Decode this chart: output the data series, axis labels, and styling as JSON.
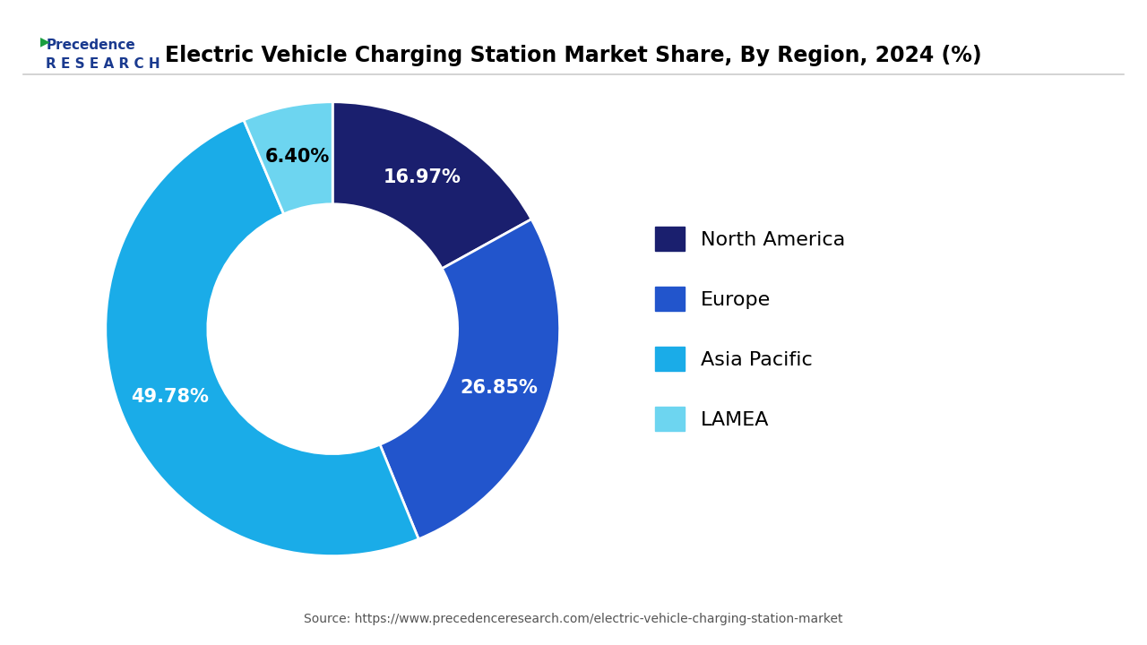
{
  "title": "Electric Vehicle Charging Station Market Share, By Region, 2024 (%)",
  "values": [
    16.97,
    26.85,
    49.78,
    6.4
  ],
  "labels": [
    "North America",
    "Europe",
    "Asia Pacific",
    "LAMEA"
  ],
  "pct_labels": [
    "16.97%",
    "26.85%",
    "49.78%",
    "6.40%"
  ],
  "colors": [
    "#1a1f6e",
    "#2255cc",
    "#1aace8",
    "#6dd5f0"
  ],
  "source": "Source: https://www.precedenceresearch.com/electric-vehicle-charging-station-market",
  "background_color": "#ffffff",
  "wedge_text_colors": [
    "white",
    "white",
    "white",
    "black"
  ],
  "startangle": 90,
  "donut_width": 0.45
}
